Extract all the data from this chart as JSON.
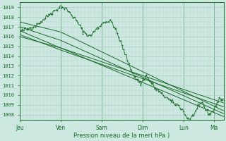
{
  "title": "",
  "xlabel": "Pression niveau de la mer( hPa )",
  "bg_color": "#cce8e0",
  "plot_bg_color": "#cce8e0",
  "line_color": "#1a6b2a",
  "grid_major_color": "#aacfc8",
  "grid_minor_color": "#bcd8d0",
  "text_color": "#1a6b2a",
  "ylim": [
    1007.5,
    1019.5
  ],
  "yticks": [
    1008,
    1009,
    1010,
    1011,
    1012,
    1013,
    1014,
    1015,
    1016,
    1017,
    1018,
    1019
  ],
  "day_labels": [
    "Jeu",
    "Ven",
    "Sam",
    "Dim",
    "Lun",
    "Ma"
  ],
  "day_positions": [
    0,
    48,
    96,
    144,
    192,
    228
  ],
  "total_points": 240,
  "figsize": [
    3.2,
    2.0
  ],
  "dpi": 100
}
